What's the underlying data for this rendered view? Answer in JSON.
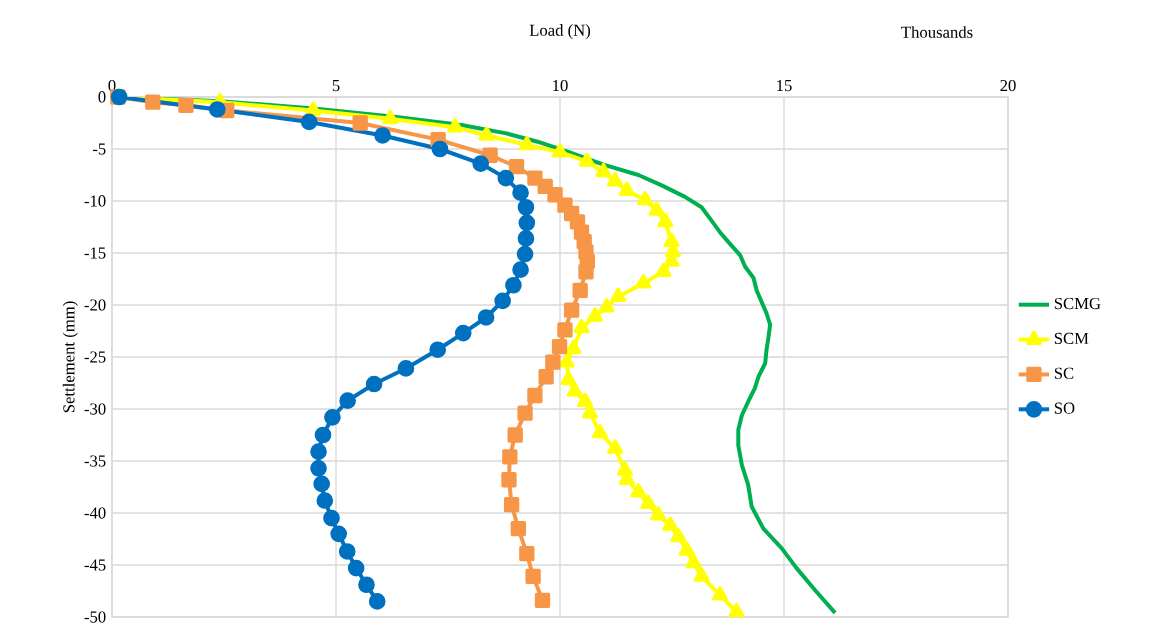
{
  "chart_data": {
    "type": "line",
    "xlabel": "Load (N)",
    "ylabel": "Settlement (mm)",
    "annotations": [
      "Thousands"
    ],
    "xlim": [
      0,
      20
    ],
    "xticks": [
      0,
      5,
      10,
      15,
      20
    ],
    "ylim": [
      -50,
      0
    ],
    "yticks": [
      -50,
      -45,
      -40,
      -35,
      -30,
      -25,
      -20,
      -15,
      -10,
      -5,
      0
    ],
    "grid": true,
    "legend": "right",
    "series": [
      {
        "name": "SCMG",
        "color": "#00b050",
        "x": [
          0.13,
          2.4,
          4.5,
          6.3,
          7.8,
          8.8,
          9.5,
          10.2,
          10.97,
          11.75,
          12.27,
          12.79,
          13.16,
          13.35,
          13.57,
          13.79,
          14.02,
          14.13,
          14.32,
          14.39,
          14.5,
          14.61,
          14.69,
          14.65,
          14.61,
          14.58,
          14.43,
          14.35,
          14.2,
          14.06,
          13.98,
          13.98,
          14.06,
          14.2,
          14.28,
          14.54,
          14.95,
          15.28,
          15.69,
          16.14
        ],
        "values": [
          0,
          -0.4,
          -1.1,
          -1.9,
          -2.7,
          -3.5,
          -4.3,
          -5.3,
          -6.5,
          -7.5,
          -8.5,
          -9.6,
          -10.6,
          -11.7,
          -13.0,
          -14.1,
          -15.2,
          -16.3,
          -17.4,
          -18.6,
          -19.7,
          -20.8,
          -21.9,
          -23.2,
          -24.3,
          -25.6,
          -26.9,
          -28.0,
          -29.3,
          -30.6,
          -32.0,
          -33.5,
          -35.4,
          -37.3,
          -39.4,
          -41.5,
          -43.4,
          -45.3,
          -47.4,
          -49.6
        ]
      },
      {
        "name": "SCM",
        "color": "#ffff00",
        "marker": "triangle",
        "x": [
          0.13,
          2.41,
          4.49,
          6.21,
          7.66,
          8.36,
          9.26,
          10.0,
          10.6,
          10.97,
          11.23,
          11.49,
          11.9,
          12.16,
          12.35,
          12.49,
          12.52,
          12.49,
          12.31,
          11.86,
          11.3,
          11.04,
          10.78,
          10.48,
          10.3,
          10.15,
          10.19,
          10.33,
          10.56,
          10.67,
          10.89,
          11.23,
          11.45,
          11.49,
          11.75,
          11.97,
          12.19,
          12.46,
          12.64,
          12.83,
          12.98,
          13.16,
          13.57,
          13.94
        ],
        "values": [
          0,
          -0.5,
          -1.3,
          -2.1,
          -2.9,
          -3.7,
          -4.6,
          -5.3,
          -6.2,
          -7.2,
          -8.1,
          -9.0,
          -9.9,
          -10.9,
          -12.0,
          -13.9,
          -14.9,
          -15.8,
          -16.8,
          -17.9,
          -19.2,
          -20.2,
          -21.1,
          -22.2,
          -24.2,
          -25.5,
          -27.2,
          -28.3,
          -29.3,
          -30.4,
          -32.3,
          -33.8,
          -35.9,
          -36.8,
          -38.0,
          -39.1,
          -40.2,
          -41.2,
          -42.3,
          -43.6,
          -44.8,
          -46.1,
          -47.9,
          -49.5
        ]
      },
      {
        "name": "SC",
        "color": "#f79646",
        "marker": "square",
        "x": [
          0.13,
          0.91,
          1.65,
          2.56,
          5.54,
          7.28,
          8.44,
          9.03,
          9.44,
          9.67,
          9.89,
          10.11,
          10.26,
          10.39,
          10.48,
          10.54,
          10.58,
          10.61,
          10.58,
          10.45,
          10.26,
          10.11,
          9.99,
          9.84,
          9.69,
          9.44,
          9.22,
          9.0,
          8.88,
          8.86,
          8.92,
          9.07,
          9.26,
          9.4,
          9.61
        ],
        "values": [
          0,
          -0.5,
          -0.8,
          -1.3,
          -2.5,
          -4.1,
          -5.6,
          -6.7,
          -7.8,
          -8.6,
          -9.4,
          -10.4,
          -11.2,
          -12.0,
          -13.0,
          -13.9,
          -14.9,
          -15.8,
          -16.8,
          -18.6,
          -20.5,
          -22.4,
          -24.0,
          -25.5,
          -26.9,
          -28.7,
          -30.4,
          -32.5,
          -34.6,
          -36.8,
          -39.2,
          -41.5,
          -43.9,
          -46.1,
          -48.4
        ]
      },
      {
        "name": "SO",
        "color": "#0070c0",
        "marker": "circle",
        "x": [
          0.16,
          2.35,
          4.4,
          6.04,
          7.32,
          8.23,
          8.79,
          9.12,
          9.24,
          9.26,
          9.24,
          9.22,
          9.12,
          8.96,
          8.72,
          8.35,
          7.84,
          7.27,
          6.56,
          5.85,
          5.26,
          4.92,
          4.71,
          4.61,
          4.61,
          4.68,
          4.75,
          4.9,
          5.06,
          5.25,
          5.45,
          5.68,
          5.92
        ],
        "values": [
          0,
          -1.2,
          -2.4,
          -3.7,
          -5.0,
          -6.4,
          -7.8,
          -9.2,
          -10.6,
          -12.1,
          -13.6,
          -15.1,
          -16.6,
          -18.1,
          -19.6,
          -21.2,
          -22.7,
          -24.3,
          -26.1,
          -27.6,
          -29.2,
          -30.8,
          -32.5,
          -34.1,
          -35.7,
          -37.2,
          -38.8,
          -40.5,
          -42.0,
          -43.7,
          -45.3,
          -46.9,
          -48.5
        ]
      }
    ]
  }
}
